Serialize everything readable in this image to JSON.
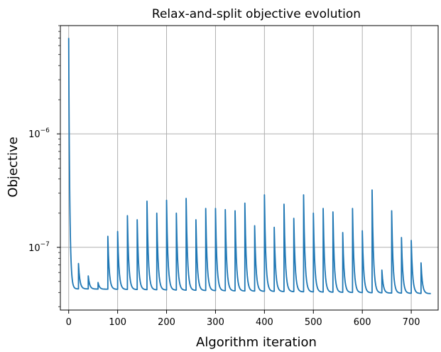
{
  "chart_data": {
    "type": "line",
    "title": "Relax-and-split objective evolution",
    "xlabel": "Algorithm iteration",
    "ylabel": "Objective",
    "xlim": [
      -17,
      755
    ],
    "ylim": [
      2.8e-08,
      9e-06
    ],
    "yscale": "log",
    "grid": true,
    "x_ticks": [
      0,
      100,
      200,
      300,
      400,
      500,
      600,
      700
    ],
    "y_ticks": [
      {
        "value": 1e-07,
        "base": "10",
        "exponent": "−7"
      },
      {
        "value": 1e-06,
        "base": "10",
        "exponent": "−6"
      }
    ],
    "series": [
      {
        "color": "#1f77b4",
        "initial": {
          "x": 0,
          "y": 7e-06
        },
        "baseline_before_first_restart": 4.3e-08,
        "baseline_end": 3.9e-08,
        "end_x": 740,
        "spikes": [
          {
            "x": 20,
            "y": 7.2e-08
          },
          {
            "x": 40,
            "y": 5.6e-08
          },
          {
            "x": 60,
            "y": 4.9e-08
          },
          {
            "x": 80,
            "y": 1.25e-07
          },
          {
            "x": 100,
            "y": 1.38e-07
          },
          {
            "x": 120,
            "y": 1.9e-07
          },
          {
            "x": 140,
            "y": 1.75e-07
          },
          {
            "x": 160,
            "y": 2.55e-07
          },
          {
            "x": 180,
            "y": 2e-07
          },
          {
            "x": 200,
            "y": 2.6e-07
          },
          {
            "x": 220,
            "y": 2e-07
          },
          {
            "x": 240,
            "y": 2.7e-07
          },
          {
            "x": 260,
            "y": 1.75e-07
          },
          {
            "x": 280,
            "y": 2.2e-07
          },
          {
            "x": 300,
            "y": 2.2e-07
          },
          {
            "x": 320,
            "y": 2.15e-07
          },
          {
            "x": 340,
            "y": 2.1e-07
          },
          {
            "x": 360,
            "y": 2.45e-07
          },
          {
            "x": 380,
            "y": 1.55e-07
          },
          {
            "x": 400,
            "y": 2.9e-07
          },
          {
            "x": 420,
            "y": 1.5e-07
          },
          {
            "x": 440,
            "y": 2.4e-07
          },
          {
            "x": 460,
            "y": 1.8e-07
          },
          {
            "x": 480,
            "y": 2.9e-07
          },
          {
            "x": 500,
            "y": 2e-07
          },
          {
            "x": 520,
            "y": 2.2e-07
          },
          {
            "x": 540,
            "y": 2.05e-07
          },
          {
            "x": 560,
            "y": 1.35e-07
          },
          {
            "x": 580,
            "y": 2.2e-07
          },
          {
            "x": 600,
            "y": 1.4e-07
          },
          {
            "x": 620,
            "y": 3.2e-07
          },
          {
            "x": 640,
            "y": 6.3e-08
          },
          {
            "x": 660,
            "y": 2.1e-07
          },
          {
            "x": 680,
            "y": 1.22e-07
          },
          {
            "x": 700,
            "y": 1.15e-07
          },
          {
            "x": 720,
            "y": 7.3e-08
          }
        ]
      }
    ]
  }
}
